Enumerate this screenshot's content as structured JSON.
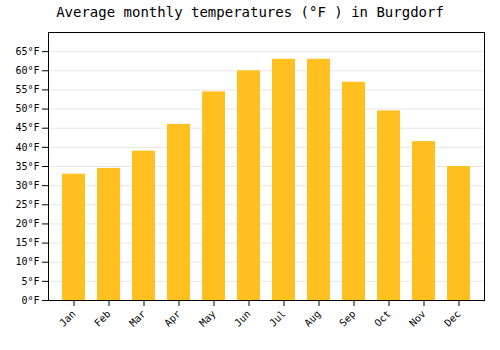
{
  "chart_data": {
    "type": "bar",
    "title": "Average monthly temperatures (°F ) in Burgdorf",
    "categories": [
      "Jan",
      "Feb",
      "Mar",
      "Apr",
      "May",
      "Jun",
      "Jul",
      "Aug",
      "Sep",
      "Oct",
      "Nov",
      "Dec"
    ],
    "values": [
      33.0,
      34.5,
      39.0,
      46.0,
      54.5,
      60.0,
      63.0,
      63.0,
      57.0,
      49.5,
      41.5,
      35.0
    ],
    "color": "#FFC020",
    "ylim": [
      0,
      70
    ],
    "yticks": [
      {
        "value": 0,
        "label": "0°F"
      },
      {
        "value": 5,
        "label": "5°F"
      },
      {
        "value": 10,
        "label": "10°F"
      },
      {
        "value": 15,
        "label": "15°F"
      },
      {
        "value": 20,
        "label": "20°F"
      },
      {
        "value": 25,
        "label": "25°F"
      },
      {
        "value": 30,
        "label": "30°F"
      },
      {
        "value": 35,
        "label": "35°F"
      },
      {
        "value": 40,
        "label": "40°F"
      },
      {
        "value": 45,
        "label": "45°F"
      },
      {
        "value": 50,
        "label": "50°F"
      },
      {
        "value": 55,
        "label": "55°F"
      },
      {
        "value": 60,
        "label": "60°F"
      },
      {
        "value": 65,
        "label": "65°F"
      }
    ],
    "grid": true
  }
}
